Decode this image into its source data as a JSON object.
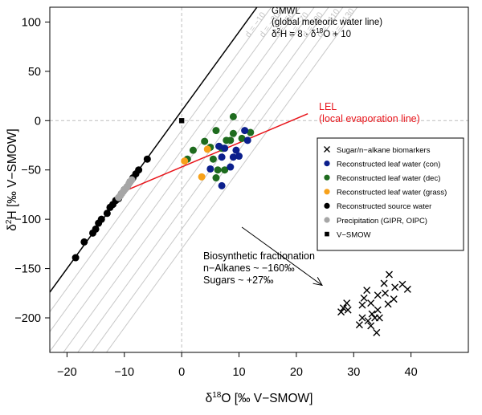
{
  "chart_data": {
    "type": "scatter",
    "xlabel_base": "δ",
    "xlabel_sup": "18",
    "xlabel_rest": "O [‰ V−SMOW]",
    "ylabel_base": "δ",
    "ylabel_sup": "2",
    "ylabel_rest": "H [‰ V−SMOW]",
    "xlim": [
      -23,
      50
    ],
    "ylim": [
      -235,
      115
    ],
    "x_ticks": [
      -20,
      -10,
      0,
      10,
      20,
      30,
      40
    ],
    "y_ticks": [
      -200,
      -150,
      -100,
      -50,
      0,
      50,
      100
    ],
    "d_lines": {
      "label_prefix": "d = ",
      "values": [
        -10,
        -30,
        -50,
        -70,
        -90,
        -110,
        -130
      ],
      "labels": [
        "d = −10",
        "d = −30",
        "d = −50",
        "d = −70",
        "d = −90",
        "d = −110",
        "d = −130"
      ],
      "color": "#c8c8c8"
    },
    "gmwl": {
      "label_line1": "GMWL",
      "label_line2": "(global meteoric water line)",
      "eq_a": "δ",
      "eq_b": "2",
      "eq_c": "H = 8 · δ",
      "eq_d": "18",
      "eq_e": "O + 10",
      "slope": 8,
      "intercept": 10,
      "color": "#000000"
    },
    "lel": {
      "label_line1": "LEL",
      "label_line2": "(local evaporation line)",
      "color": "#e8141a",
      "from": [
        -11,
        -74
      ],
      "to": [
        22,
        7
      ]
    },
    "annotation": {
      "line1": "Biosynthetic fractionation",
      "line2": "n−Alkanes ~ −160‰",
      "line3": "Sugars ~ +27‰",
      "arrow_from": [
        10.5,
        -108
      ],
      "arrow_to": [
        24.5,
        -167
      ]
    },
    "legend": {
      "position": "right",
      "items": [
        {
          "label": "Sugar/n−alkane biomarkers",
          "marker": "cross",
          "color": "#000000"
        },
        {
          "label": "Reconstructed leaf water (con)",
          "marker": "circle",
          "color": "#0b1f8c"
        },
        {
          "label": "Reconstructed leaf water (dec)",
          "marker": "circle",
          "color": "#1e6b1e"
        },
        {
          "label": "Reconstructed leaf water (grass)",
          "marker": "circle",
          "color": "#f7a11a"
        },
        {
          "label": "Reconstructed source water",
          "marker": "circle",
          "color": "#000000"
        },
        {
          "label": "Precipitation (GIPR, OIPC)",
          "marker": "circle",
          "color": "#a6a6a6"
        },
        {
          "label": "V−SMOW",
          "marker": "square",
          "color": "#000000"
        }
      ]
    },
    "series": [
      {
        "name": "Sugar/n−alkane biomarkers",
        "marker": "cross",
        "color": "#000000",
        "points": [
          [
            27.8,
            -194
          ],
          [
            28.2,
            -190
          ],
          [
            28.8,
            -185
          ],
          [
            29.0,
            -192
          ],
          [
            31.0,
            -207
          ],
          [
            31.5,
            -200
          ],
          [
            31.5,
            -187
          ],
          [
            31.8,
            -180
          ],
          [
            32.3,
            -172
          ],
          [
            32.5,
            -203
          ],
          [
            33.0,
            -185
          ],
          [
            33.0,
            -208
          ],
          [
            33.2,
            -196
          ],
          [
            33.7,
            -200
          ],
          [
            34.0,
            -215
          ],
          [
            34.2,
            -177
          ],
          [
            34.2,
            -192
          ],
          [
            34.5,
            -200
          ],
          [
            35.3,
            -165
          ],
          [
            35.5,
            -175
          ],
          [
            36.0,
            -186
          ],
          [
            36.2,
            -156
          ],
          [
            37.0,
            -181
          ],
          [
            37.2,
            -169
          ],
          [
            38.5,
            -166
          ],
          [
            39.4,
            -171
          ]
        ]
      },
      {
        "name": "Reconstructed leaf water (con)",
        "marker": "circle",
        "color": "#0b1f8c",
        "points": [
          [
            5.0,
            -49
          ],
          [
            6.5,
            -26
          ],
          [
            7.0,
            -37
          ],
          [
            7.5,
            -28
          ],
          [
            7.0,
            -66
          ],
          [
            8.5,
            -47
          ],
          [
            9.0,
            -37
          ],
          [
            9.5,
            -30
          ],
          [
            10.0,
            -36
          ],
          [
            11.0,
            -10
          ],
          [
            11.5,
            -20
          ]
        ]
      },
      {
        "name": "Reconstructed leaf water (dec)",
        "marker": "circle",
        "color": "#1e6b1e",
        "points": [
          [
            1.0,
            -39
          ],
          [
            2.0,
            -30
          ],
          [
            4.0,
            -21
          ],
          [
            5.0,
            -27
          ],
          [
            5.5,
            -39
          ],
          [
            6.0,
            -10
          ],
          [
            6.3,
            -50
          ],
          [
            6.0,
            -58
          ],
          [
            7.0,
            -28
          ],
          [
            7.5,
            -50
          ],
          [
            7.8,
            -20
          ],
          [
            8.5,
            -20
          ],
          [
            9.0,
            -13
          ],
          [
            9.0,
            4
          ],
          [
            10.5,
            -18
          ],
          [
            12.0,
            -12
          ]
        ]
      },
      {
        "name": "Reconstructed leaf water (grass)",
        "marker": "circle",
        "color": "#f7a11a",
        "points": [
          [
            3.5,
            -57
          ],
          [
            4.5,
            -29
          ],
          [
            0.5,
            -41
          ]
        ]
      },
      {
        "name": "Reconstructed source water",
        "marker": "circle",
        "color": "#000000",
        "points": [
          [
            -18.5,
            -139
          ],
          [
            -17.0,
            -123
          ],
          [
            -15.5,
            -114
          ],
          [
            -15.0,
            -110
          ],
          [
            -14.5,
            -104
          ],
          [
            -14.0,
            -100
          ],
          [
            -13.0,
            -94
          ],
          [
            -12.5,
            -88
          ],
          [
            -12.0,
            -85
          ],
          [
            -11.5,
            -81
          ],
          [
            -11.0,
            -79
          ],
          [
            -10.5,
            -74
          ],
          [
            -10.0,
            -70
          ],
          [
            -9.5,
            -67
          ],
          [
            -9.0,
            -62
          ],
          [
            -8.5,
            -58
          ],
          [
            -8.0,
            -54
          ],
          [
            -7.5,
            -50
          ],
          [
            -6.0,
            -39
          ]
        ]
      },
      {
        "name": "Precipitation (GIPR, OIPC)",
        "marker": "circle",
        "color": "#a6a6a6",
        "points": [
          [
            -11.0,
            -78
          ],
          [
            -10.7,
            -76
          ],
          [
            -10.5,
            -74
          ],
          [
            -10.2,
            -72
          ],
          [
            -10.0,
            -70
          ],
          [
            -9.8,
            -69
          ],
          [
            -9.5,
            -67
          ],
          [
            -9.2,
            -64
          ],
          [
            -9.0,
            -62
          ],
          [
            -8.7,
            -60
          ]
        ]
      },
      {
        "name": "V−SMOW",
        "marker": "square",
        "color": "#000000",
        "points": [
          [
            0,
            0
          ]
        ]
      }
    ]
  }
}
